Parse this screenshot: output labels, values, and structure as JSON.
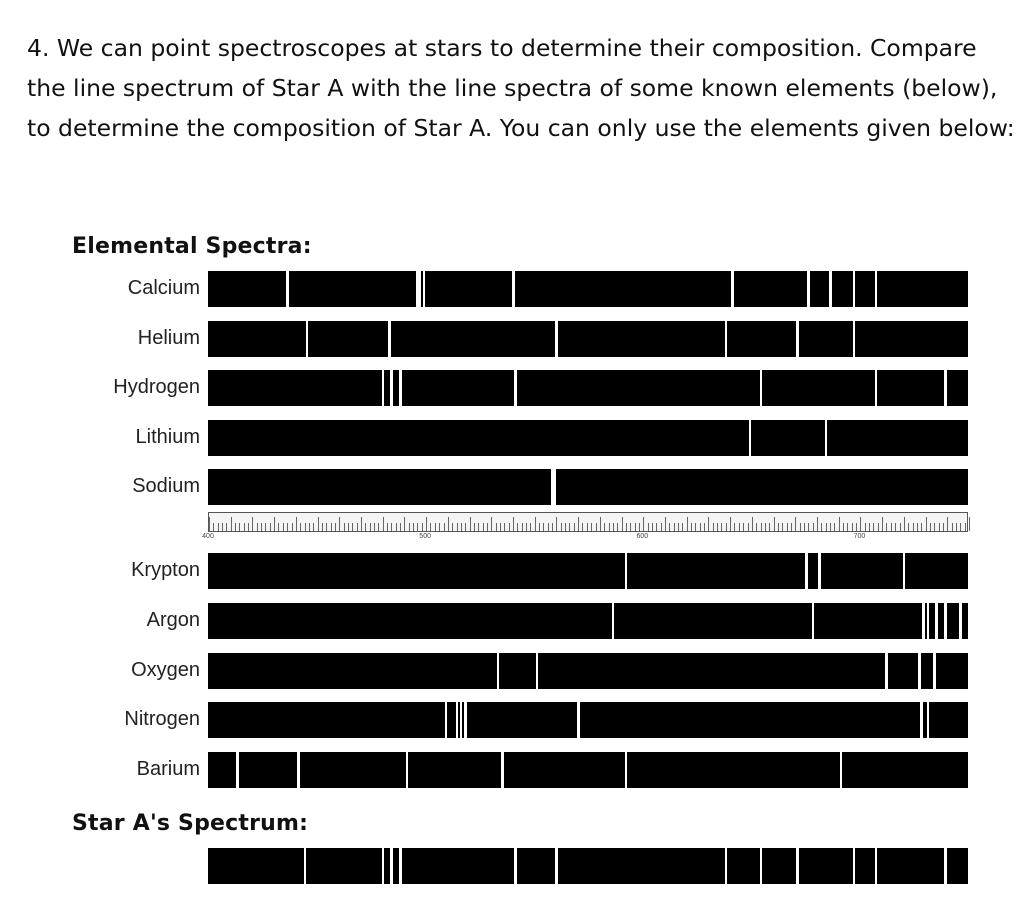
{
  "question": {
    "text": "4. We can point spectroscopes at stars to determine their composition. Compare the line spectrum of Star A with the line spectra of some known elements (below), to determine the composition of Star A. You can only use the elements given below:"
  },
  "figure": {
    "elemental_title": "Elemental Spectra:",
    "star_title": "Star A's Spectrum:",
    "ruler_labels": [
      "400",
      "500",
      "600",
      "700"
    ],
    "ruler_label_values": [
      400,
      500,
      600,
      700
    ],
    "wavelength_range": [
      400,
      750
    ],
    "group1": [
      {
        "name": "Calcium",
        "lines": [
          436,
          496,
          497,
          499,
          540,
          641,
          676,
          686,
          697,
          707
        ]
      },
      {
        "name": "Helium",
        "lines": [
          445,
          483,
          560,
          638,
          671,
          697
        ]
      },
      {
        "name": "Hydrogen",
        "lines": [
          480,
          484,
          488,
          541,
          654,
          707,
          739
        ]
      },
      {
        "name": "Lithium",
        "lines": [
          649,
          684
        ]
      },
      {
        "name": "Sodium",
        "lines": [
          558,
          559
        ]
      }
    ],
    "group2": [
      {
        "name": "Krypton",
        "lines": [
          592,
          675,
          681,
          720
        ]
      },
      {
        "name": "Argon",
        "lines": [
          586,
          678,
          729,
          731,
          735,
          739,
          746
        ]
      },
      {
        "name": "Oxygen",
        "lines": [
          533,
          551,
          712,
          727,
          734
        ]
      },
      {
        "name": "Nitrogen",
        "lines": [
          509,
          514,
          516,
          518,
          570,
          728,
          731
        ]
      },
      {
        "name": "Barium",
        "lines": [
          413,
          441,
          491,
          535,
          592,
          691
        ]
      }
    ],
    "star": {
      "lines": [
        444,
        480,
        484,
        488,
        541,
        560,
        638,
        654,
        671,
        697,
        707,
        739
      ]
    }
  }
}
